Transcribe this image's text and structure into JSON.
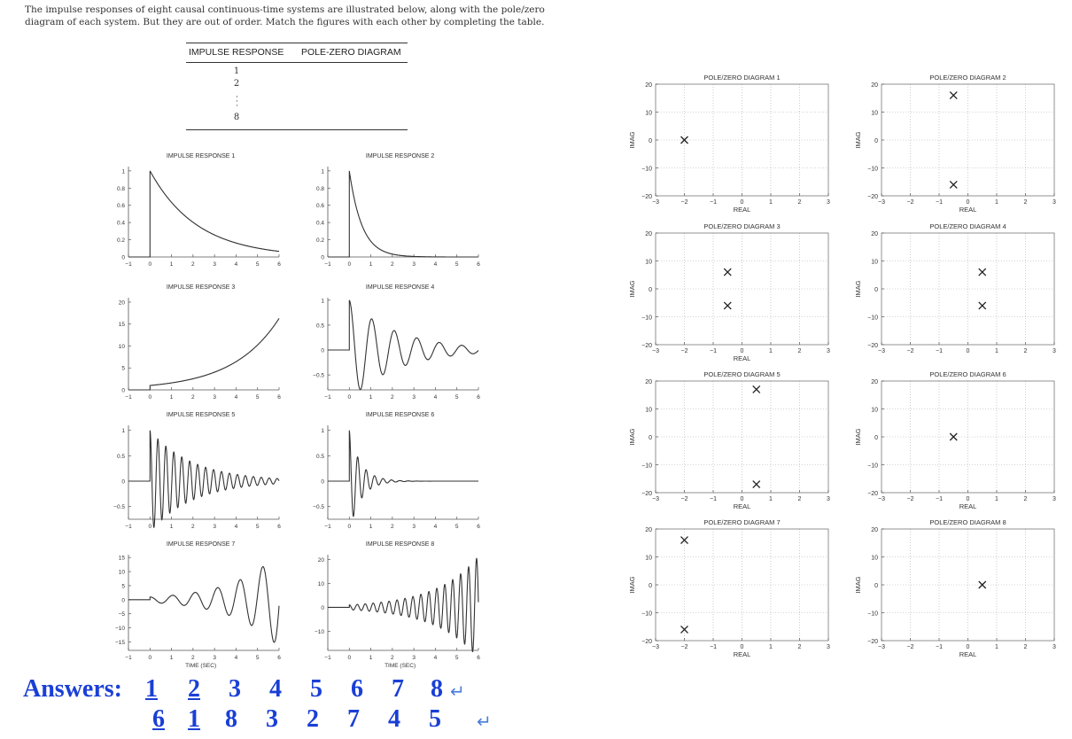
{
  "intro": {
    "line1": "The impulse responses of eight causal continuous-time systems are illustrated below, along with the pole/zero",
    "line2": "diagram of each system. But they are out of order. Match the figures with each other by completing the table."
  },
  "table": {
    "header_impulse": "IMPULSE RESPONSE",
    "header_pz": "POLE-ZERO DIAGRAM",
    "rows": [
      "1",
      "2",
      "8"
    ]
  },
  "answers": {
    "label": "Answers:",
    "row1": [
      "1",
      "2",
      "3",
      "4",
      "5",
      "6",
      "7",
      "8"
    ],
    "row2": [
      "6",
      "1",
      "8",
      "3",
      "2",
      "7",
      "4",
      "5"
    ],
    "return_mark": "↵"
  },
  "chart_data": [
    {
      "type": "line",
      "title": "IMPULSE RESPONSE 1",
      "x_range": [
        -1,
        6
      ],
      "yticks": [
        "0",
        "0.2",
        "0.4",
        "0.6",
        "0.8",
        "1"
      ],
      "xticks": [
        "−1",
        "0",
        "1",
        "2",
        "3",
        "4",
        "5",
        "6"
      ],
      "xlabel": "",
      "ylabel": ""
    },
    {
      "type": "line",
      "title": "IMPULSE RESPONSE 2",
      "x_range": [
        -1,
        6
      ],
      "yticks": [
        "0",
        "0.2",
        "0.4",
        "0.6",
        "0.8",
        "1"
      ],
      "xticks": [
        "−1",
        "0",
        "1",
        "2",
        "3",
        "4",
        "5",
        "6"
      ],
      "xlabel": "",
      "ylabel": ""
    },
    {
      "type": "line",
      "title": "IMPULSE RESPONSE 3",
      "x_range": [
        -1,
        6
      ],
      "yticks": [
        "0",
        "5",
        "10",
        "15",
        "20"
      ],
      "xticks": [
        "−1",
        "0",
        "1",
        "2",
        "3",
        "4",
        "5",
        "6"
      ],
      "xlabel": "",
      "ylabel": ""
    },
    {
      "type": "line",
      "title": "IMPULSE RESPONSE 4",
      "x_range": [
        -1,
        6
      ],
      "yticks": [
        "−0.5",
        "0",
        "0.5",
        "1"
      ],
      "xticks": [
        "−1",
        "0",
        "1",
        "2",
        "3",
        "4",
        "5",
        "6"
      ],
      "xlabel": "",
      "ylabel": ""
    },
    {
      "type": "line",
      "title": "IMPULSE RESPONSE 5",
      "x_range": [
        -1,
        6
      ],
      "yticks": [
        "−0.5",
        "0",
        "0.5",
        "1"
      ],
      "xticks": [
        "−1",
        "0",
        "1",
        "2",
        "3",
        "4",
        "5",
        "6"
      ],
      "xlabel": "",
      "ylabel": ""
    },
    {
      "type": "line",
      "title": "IMPULSE RESPONSE 6",
      "x_range": [
        -1,
        6
      ],
      "yticks": [
        "−0.5",
        "0",
        "0.5",
        "1"
      ],
      "xticks": [
        "−1",
        "0",
        "1",
        "2",
        "3",
        "4",
        "5",
        "6"
      ],
      "xlabel": "",
      "ylabel": ""
    },
    {
      "type": "line",
      "title": "IMPULSE RESPONSE 7",
      "x_range": [
        -1,
        6
      ],
      "yticks": [
        "−15",
        "−10",
        "−5",
        "0",
        "5",
        "10",
        "15"
      ],
      "xticks": [
        "−1",
        "0",
        "1",
        "2",
        "3",
        "4",
        "5",
        "6"
      ],
      "xlabel": "TIME (SEC)",
      "ylabel": ""
    },
    {
      "type": "line",
      "title": "IMPULSE RESPONSE 8",
      "x_range": [
        -1,
        6
      ],
      "yticks": [
        "−10",
        "0",
        "10",
        "20"
      ],
      "xticks": [
        "−1",
        "0",
        "1",
        "2",
        "3",
        "4",
        "5",
        "6"
      ],
      "xlabel": "TIME (SEC)",
      "ylabel": ""
    },
    {
      "type": "scatter",
      "title": "POLE/ZERO DIAGRAM 1",
      "xlim": [
        -3,
        3
      ],
      "ylim": [
        -20,
        20
      ],
      "xlabel": "REAL",
      "ylabel": "IMAG",
      "poles": [
        [
          -2,
          0
        ]
      ]
    },
    {
      "type": "scatter",
      "title": "POLE/ZERO DIAGRAM 2",
      "xlim": [
        -3,
        3
      ],
      "ylim": [
        -20,
        20
      ],
      "xlabel": "REAL",
      "ylabel": "IMAG",
      "poles": [
        [
          -0.5,
          16
        ],
        [
          -0.5,
          -16
        ]
      ]
    },
    {
      "type": "scatter",
      "title": "POLE/ZERO DIAGRAM 3",
      "xlim": [
        -3,
        3
      ],
      "ylim": [
        -20,
        20
      ],
      "xlabel": "REAL",
      "ylabel": "IMAG",
      "poles": [
        [
          -0.5,
          6
        ],
        [
          -0.5,
          -6
        ]
      ]
    },
    {
      "type": "scatter",
      "title": "POLE/ZERO DIAGRAM 4",
      "xlim": [
        -3,
        3
      ],
      "ylim": [
        -20,
        20
      ],
      "xlabel": "",
      "ylabel": "IMAG",
      "poles": [
        [
          0.5,
          6
        ],
        [
          0.5,
          -6
        ]
      ]
    },
    {
      "type": "scatter",
      "title": "POLE/ZERO DIAGRAM 5",
      "xlim": [
        -3,
        3
      ],
      "ylim": [
        -20,
        20
      ],
      "xlabel": "REAL",
      "ylabel": "IMAG",
      "poles": [
        [
          0.5,
          17
        ],
        [
          0.5,
          -17
        ]
      ]
    },
    {
      "type": "scatter",
      "title": "POLE/ZERO DIAGRAM 6",
      "xlim": [
        -3,
        3
      ],
      "ylim": [
        -20,
        20
      ],
      "xlabel": "REAL",
      "ylabel": "IMAG",
      "poles": [
        [
          -0.5,
          0
        ]
      ]
    },
    {
      "type": "scatter",
      "title": "POLE/ZERO DIAGRAM 7",
      "xlim": [
        -3,
        3
      ],
      "ylim": [
        -20,
        20
      ],
      "xlabel": "REAL",
      "ylabel": "IMAG",
      "poles": [
        [
          -2,
          16
        ],
        [
          -2,
          -16
        ]
      ]
    },
    {
      "type": "scatter",
      "title": "POLE/ZERO DIAGRAM 8",
      "xlim": [
        -3,
        3
      ],
      "ylim": [
        -20,
        20
      ],
      "xlabel": "REAL",
      "ylabel": "IMAG",
      "poles": [
        [
          0.5,
          0
        ]
      ]
    }
  ]
}
